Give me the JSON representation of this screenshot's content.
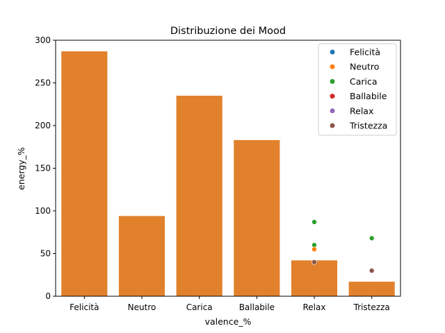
{
  "chart_data": {
    "type": "bar",
    "title": "Distribuzione dei Mood",
    "xlabel": "valence_%",
    "ylabel": "energy_%",
    "ylim": [
      0,
      300
    ],
    "yticks": [
      0,
      50,
      100,
      150,
      200,
      250,
      300
    ],
    "categories": [
      "Felicità",
      "Neutro",
      "Carica",
      "Ballabile",
      "Relax",
      "Tristezza"
    ],
    "bar_color": "#e1812c",
    "values": [
      287,
      94,
      235,
      183,
      42,
      17
    ],
    "scatter_overlay": [
      {
        "x": "Relax",
        "y": 87,
        "mood": "Carica"
      },
      {
        "x": "Relax",
        "y": 60,
        "mood": "Carica"
      },
      {
        "x": "Relax",
        "y": 55,
        "mood": "Neutro"
      },
      {
        "x": "Relax",
        "y": 40,
        "mood": "Tristezza"
      },
      {
        "x": "Tristezza",
        "y": 68,
        "mood": "Carica"
      },
      {
        "x": "Tristezza",
        "y": 30,
        "mood": "Tristezza"
      }
    ],
    "legend": {
      "placement": "top-right",
      "entries": [
        {
          "label": "Felicità",
          "color": "#1f77b4"
        },
        {
          "label": "Neutro",
          "color": "#ff7f0e"
        },
        {
          "label": "Carica",
          "color": "#2ca02c"
        },
        {
          "label": "Ballabile",
          "color": "#d62728"
        },
        {
          "label": "Relax",
          "color": "#9467bd"
        },
        {
          "label": "Tristezza",
          "color": "#8c564b"
        }
      ]
    }
  }
}
